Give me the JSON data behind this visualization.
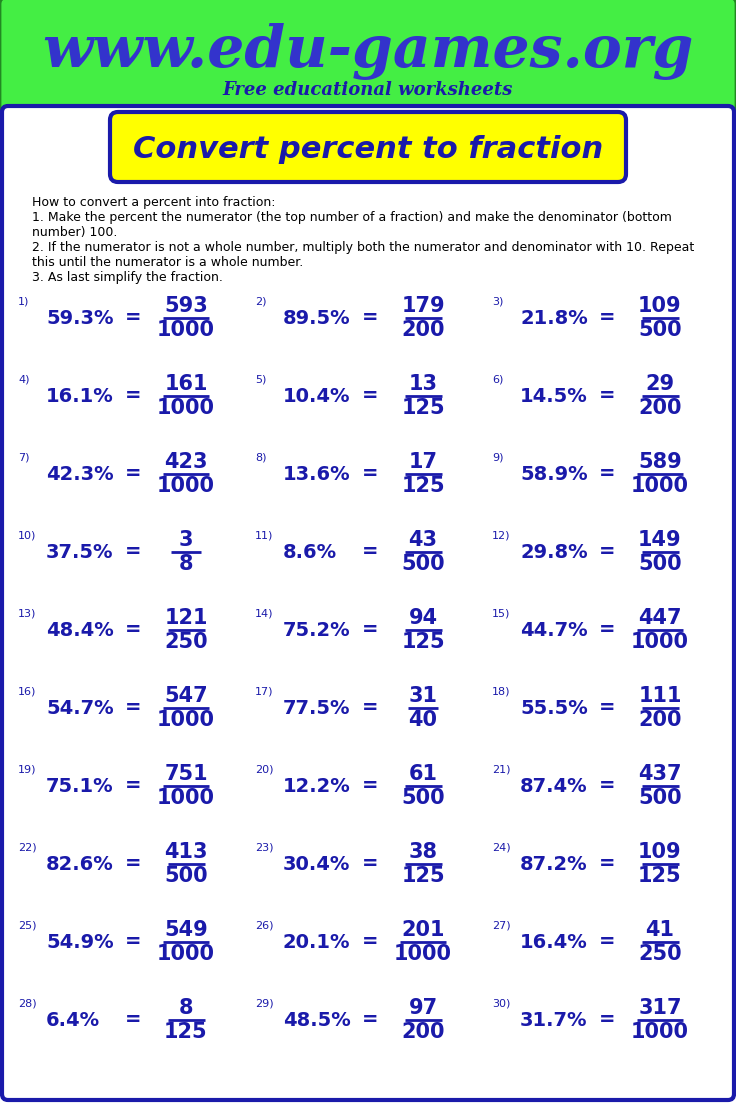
{
  "title": "Convert percent to fraction",
  "website": "www.edu-games.org",
  "subtitle": "Free educational worksheets",
  "instructions": [
    "How to convert a percent into fraction:",
    "1. Make the percent the numerator (the top number of a fraction) and make the denominator (bottom",
    "number) 100.",
    "2. If the numerator is not a whole number, multiply both the numerator and denominator with 10. Repeat",
    "this until the numerator is a whole number.",
    "3. As last simplify the fraction."
  ],
  "problems": [
    {
      "num": "1)",
      "percent": "59.3%",
      "numer": "593",
      "denom": "1000"
    },
    {
      "num": "2)",
      "percent": "89.5%",
      "numer": "179",
      "denom": "200"
    },
    {
      "num": "3)",
      "percent": "21.8%",
      "numer": "109",
      "denom": "500"
    },
    {
      "num": "4)",
      "percent": "16.1%",
      "numer": "161",
      "denom": "1000"
    },
    {
      "num": "5)",
      "percent": "10.4%",
      "numer": "13",
      "denom": "125"
    },
    {
      "num": "6)",
      "percent": "14.5%",
      "numer": "29",
      "denom": "200"
    },
    {
      "num": "7)",
      "percent": "42.3%",
      "numer": "423",
      "denom": "1000"
    },
    {
      "num": "8)",
      "percent": "13.6%",
      "numer": "17",
      "denom": "125"
    },
    {
      "num": "9)",
      "percent": "58.9%",
      "numer": "589",
      "denom": "1000"
    },
    {
      "num": "10)",
      "percent": "37.5%",
      "numer": "3",
      "denom": "8"
    },
    {
      "num": "11)",
      "percent": "8.6%",
      "numer": "43",
      "denom": "500"
    },
    {
      "num": "12)",
      "percent": "29.8%",
      "numer": "149",
      "denom": "500"
    },
    {
      "num": "13)",
      "percent": "48.4%",
      "numer": "121",
      "denom": "250"
    },
    {
      "num": "14)",
      "percent": "75.2%",
      "numer": "94",
      "denom": "125"
    },
    {
      "num": "15)",
      "percent": "44.7%",
      "numer": "447",
      "denom": "1000"
    },
    {
      "num": "16)",
      "percent": "54.7%",
      "numer": "547",
      "denom": "1000"
    },
    {
      "num": "17)",
      "percent": "77.5%",
      "numer": "31",
      "denom": "40"
    },
    {
      "num": "18)",
      "percent": "55.5%",
      "numer": "111",
      "denom": "200"
    },
    {
      "num": "19)",
      "percent": "75.1%",
      "numer": "751",
      "denom": "1000"
    },
    {
      "num": "20)",
      "percent": "12.2%",
      "numer": "61",
      "denom": "500"
    },
    {
      "num": "21)",
      "percent": "87.4%",
      "numer": "437",
      "denom": "500"
    },
    {
      "num": "22)",
      "percent": "82.6%",
      "numer": "413",
      "denom": "500"
    },
    {
      "num": "23)",
      "percent": "30.4%",
      "numer": "38",
      "denom": "125"
    },
    {
      "num": "24)",
      "percent": "87.2%",
      "numer": "109",
      "denom": "125"
    },
    {
      "num": "25)",
      "percent": "54.9%",
      "numer": "549",
      "denom": "1000"
    },
    {
      "num": "26)",
      "percent": "20.1%",
      "numer": "201",
      "denom": "1000"
    },
    {
      "num": "27)",
      "percent": "16.4%",
      "numer": "41",
      "denom": "250"
    },
    {
      "num": "28)",
      "percent": "6.4%",
      "numer": "8",
      "denom": "125"
    },
    {
      "num": "29)",
      "percent": "48.5%",
      "numer": "97",
      "denom": "200"
    },
    {
      "num": "30)",
      "percent": "31.7%",
      "numer": "317",
      "denom": "1000"
    }
  ],
  "header_bg": "#44ee44",
  "header_border": "#228822",
  "title_bg": "#ffff00",
  "title_border": "#1a1aaa",
  "title_color": "#1a1aaa",
  "website_color": "#3333cc",
  "subtitle_color": "#1a1aaa",
  "body_bg": "#ffffff",
  "body_border": "#1a1aaa",
  "problem_color": "#1a1aaa",
  "instruction_color": "#000000"
}
